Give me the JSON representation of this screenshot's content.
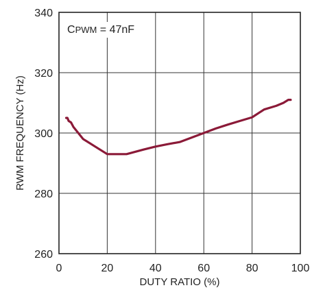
{
  "chart_data": {
    "type": "line",
    "title": "",
    "xlabel": "DUTY RATIO (%)",
    "ylabel": "RWM FREQUENCY (Hz)",
    "xlim": [
      0,
      100
    ],
    "ylim": [
      260,
      340
    ],
    "x_ticks": [
      "0",
      "20",
      "40",
      "60",
      "80",
      "100"
    ],
    "y_ticks": [
      "260",
      "280",
      "300",
      "320",
      "340"
    ],
    "grid": true,
    "annotation": {
      "main": "C",
      "sub": "PWM",
      "suffix": " = 47nF",
      "placement": "top-left"
    },
    "series": [
      {
        "color": "#8b1a38",
        "x": [
          3,
          3.5,
          4,
          5,
          6,
          8,
          10,
          15,
          20,
          25,
          28,
          35,
          40,
          45,
          50,
          55,
          60,
          65,
          70,
          75,
          80,
          85,
          90,
          93,
          95,
          96
        ],
        "y": [
          305,
          305,
          304,
          303.5,
          302,
          300,
          298,
          295.5,
          293,
          293,
          293,
          294.5,
          295.5,
          296.3,
          297,
          298.5,
          300,
          301.5,
          302.8,
          304,
          305.2,
          307.8,
          309,
          310,
          311,
          311
        ]
      }
    ]
  }
}
